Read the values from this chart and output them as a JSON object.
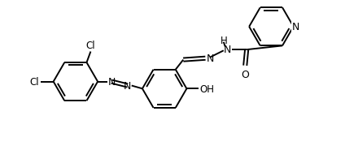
{
  "background_color": "#ffffff",
  "line_color": "#000000",
  "line_width": 1.4,
  "font_size": 8.5,
  "fig_width": 4.24,
  "fig_height": 2.07,
  "dpi": 100,
  "xlim": [
    -0.5,
    10.5
  ],
  "ylim": [
    -0.2,
    5.2
  ]
}
